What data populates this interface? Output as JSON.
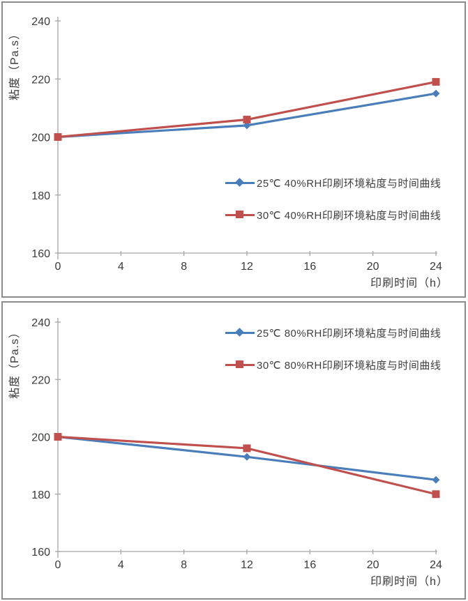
{
  "colors": {
    "series_blue": "#4A7EBB",
    "series_red": "#C0504D",
    "axis_line": "#A6A6A6",
    "tick_text": "#3A3A3A",
    "panel_border": "#8C8C8C"
  },
  "chart_data": [
    {
      "type": "line",
      "x": [
        0,
        12,
        24
      ],
      "series": [
        {
          "name": "25℃ 40%RH印刷环境粘度与时间曲线",
          "color": "#4A7EBB",
          "marker": "diamond",
          "values": [
            200,
            204,
            215
          ]
        },
        {
          "name": "30℃ 40%RH印刷环境粘度与时间曲线",
          "color": "#C0504D",
          "marker": "square",
          "values": [
            200,
            206,
            219
          ]
        }
      ],
      "title": "",
      "xlabel": "印刷时间（h）",
      "ylabel": "粘度（Pa.s）",
      "xlim": [
        0,
        24
      ],
      "ylim": [
        160,
        240
      ],
      "xticks": [
        0,
        4,
        8,
        12,
        16,
        20,
        24
      ],
      "yticks": [
        160,
        180,
        200,
        220,
        240
      ],
      "grid": false,
      "legend_position": "inside-right-middle"
    },
    {
      "type": "line",
      "x": [
        0,
        12,
        24
      ],
      "series": [
        {
          "name": "25℃ 80%RH印刷环境粘度与时间曲线",
          "color": "#4A7EBB",
          "marker": "diamond",
          "values": [
            200,
            193,
            185
          ]
        },
        {
          "name": "30℃ 80%RH印刷环境粘度与时间曲线",
          "color": "#C0504D",
          "marker": "square",
          "values": [
            200,
            196,
            180
          ]
        }
      ],
      "title": "",
      "xlabel": "印刷时间（h）",
      "ylabel": "粘度（Pa.s）",
      "xlim": [
        0,
        24
      ],
      "ylim": [
        160,
        240
      ],
      "xticks": [
        0,
        4,
        8,
        12,
        16,
        20,
        24
      ],
      "yticks": [
        160,
        180,
        200,
        220,
        240
      ],
      "grid": false,
      "legend_position": "inside-top-right"
    }
  ]
}
